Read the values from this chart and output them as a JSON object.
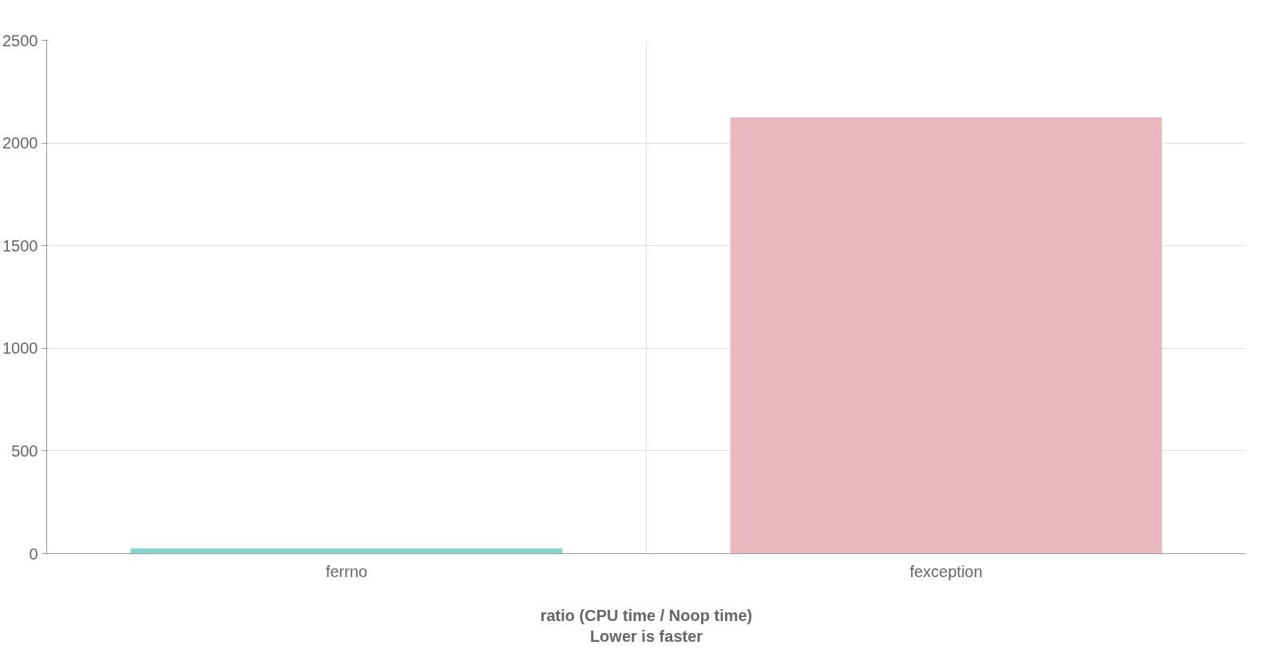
{
  "chart_data": {
    "type": "bar",
    "xlabel": "ratio (CPU time / Noop time)\nLower is faster",
    "categories": [
      "ferrno",
      "fexception"
    ],
    "values": [
      25,
      2125
    ],
    "colors": [
      "#80d8cf",
      "#ebb7bf"
    ],
    "ylim": [
      0,
      2500
    ],
    "yticks": [
      0,
      500,
      1000,
      1500,
      2000,
      2500
    ],
    "grid": true
  }
}
